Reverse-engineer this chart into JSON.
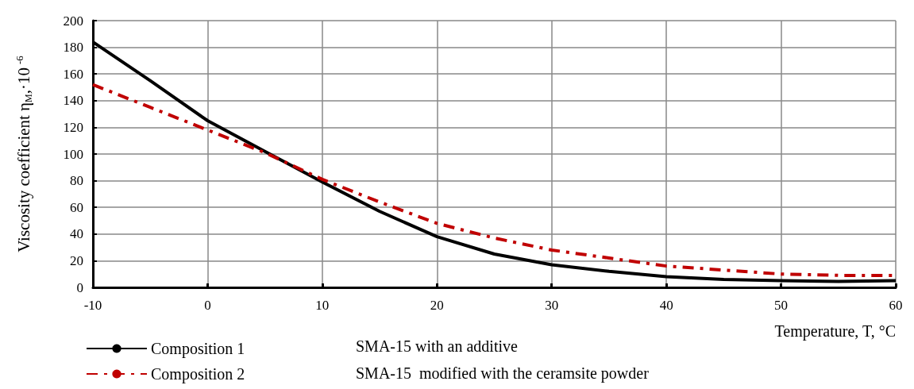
{
  "chart_data": {
    "type": "line",
    "xlabel": "Temperature, T, °C",
    "ylabel": "Viscosity coefficient η$_{M}$,·10$^{-6}$",
    "x": [
      -10,
      -5,
      0,
      5,
      10,
      15,
      20,
      25,
      30,
      35,
      40,
      45,
      50,
      55,
      60
    ],
    "series": [
      {
        "name": "Composition 1",
        "color": "#000000",
        "line_style": "solid",
        "values": [
          184,
          155,
          125,
          102,
          79,
          57,
          38,
          25,
          17,
          12,
          8,
          6,
          5,
          4.5,
          5
        ]
      },
      {
        "name": "Composition 2",
        "color": "#c00000",
        "line_style": "dashed",
        "values": [
          152,
          135,
          118,
          101,
          81,
          64,
          48,
          37,
          28,
          22,
          16,
          13,
          10,
          9,
          9
        ]
      }
    ],
    "xlim": [
      -10,
      60
    ],
    "xticks": [
      -10,
      0,
      10,
      20,
      30,
      40,
      50,
      60
    ],
    "ylim": [
      0,
      200
    ],
    "yticks": [
      0,
      20,
      40,
      60,
      80,
      100,
      120,
      140,
      160,
      180,
      200
    ],
    "grid": true,
    "legend": "bottom left",
    "marker": "none",
    "annotations": [
      "SMA-15 with an additive",
      "SMA-15  modified with the ceramsite powder"
    ]
  }
}
